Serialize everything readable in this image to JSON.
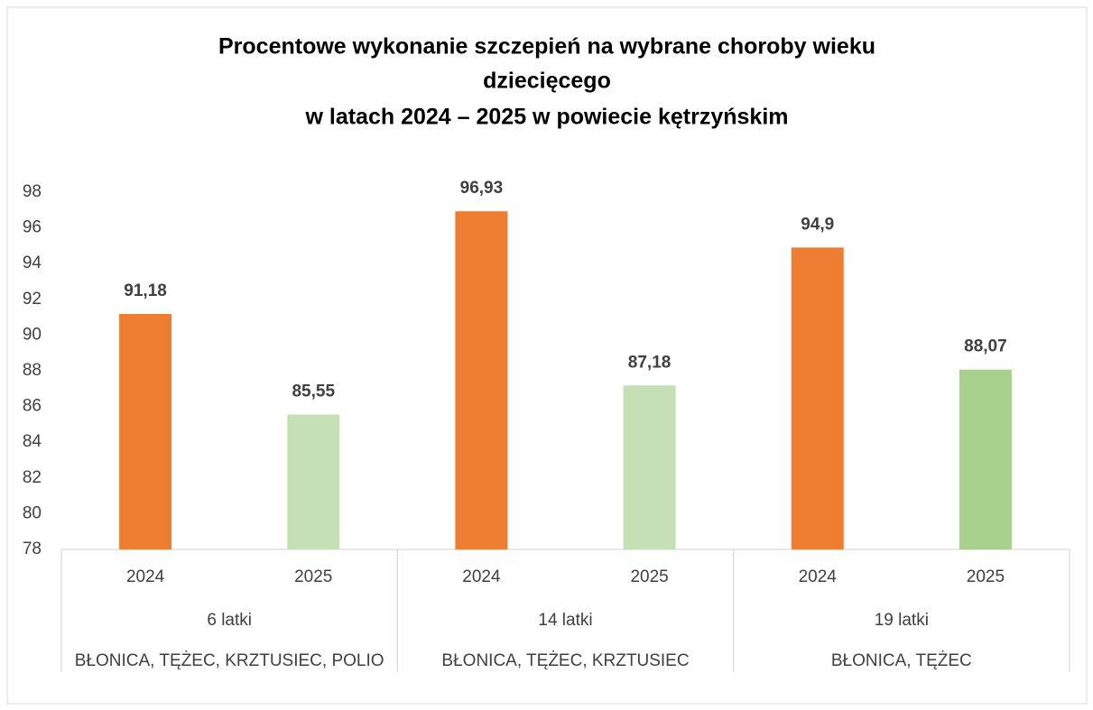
{
  "chart_data": {
    "type": "bar",
    "title": [
      "Procentowe wykonanie szczepień na wybrane choroby wieku",
      "dziecięcego",
      "w latach 2024 – 2025 w powiecie kętrzyńskim"
    ],
    "categories": [
      "2024",
      "2025",
      "2024",
      "2025",
      "2024",
      "2025"
    ],
    "groups": [
      {
        "label": "6 latki",
        "sublabel": "BŁONICA, TĘŻEC, KRZTUSIEC, POLIO"
      },
      {
        "label": "14 latki",
        "sublabel": "BŁONICA, TĘŻEC, KRZTUSIEC"
      },
      {
        "label": "19 latki",
        "sublabel": "BŁONICA, TĘŻEC"
      }
    ],
    "values": [
      91.18,
      85.55,
      96.93,
      87.18,
      94.9,
      88.07
    ],
    "value_labels": [
      "91,18",
      "85,55",
      "96,93",
      "87,18",
      "94,9",
      "88,07"
    ],
    "colors": [
      "#ed7d31",
      "#c5e0b4",
      "#ed7d31",
      "#c5e0b4",
      "#ed7d31",
      "#a9d18e"
    ],
    "ylim": [
      78,
      98
    ],
    "yticks": [
      78,
      80,
      82,
      84,
      86,
      88,
      90,
      92,
      94,
      96,
      98
    ],
    "grid": false
  }
}
